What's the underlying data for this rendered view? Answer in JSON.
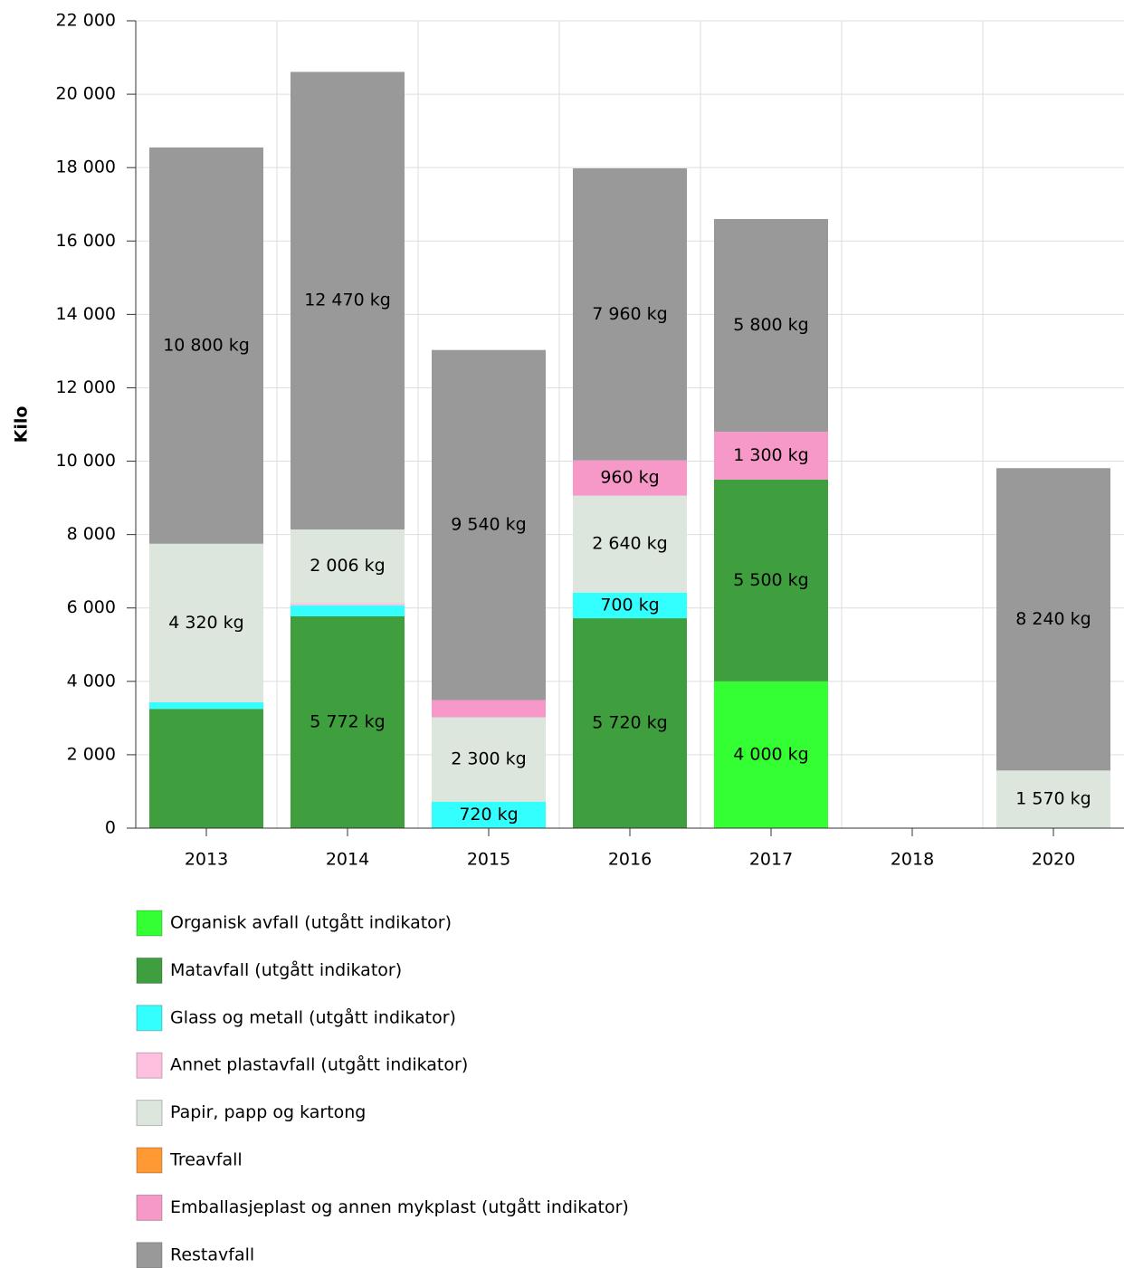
{
  "chart_data": {
    "type": "stacked_bar",
    "y_label": "Kilo",
    "categories": [
      "2013",
      "2014",
      "2015",
      "2016",
      "2017",
      "2018",
      "2020"
    ],
    "series": [
      {
        "name": "Organisk avfall (utgått indikator)",
        "color": "#33ff33",
        "values": [
          null,
          null,
          null,
          null,
          4000,
          null,
          null
        ],
        "value_labels": [
          null,
          null,
          null,
          null,
          "4 000 kg",
          null,
          null
        ]
      },
      {
        "name": "Matavfall (utgått indikator)",
        "color": "#3f9f3f",
        "values": [
          3250,
          5772,
          null,
          5720,
          5500,
          null,
          null
        ],
        "value_labels": [
          null,
          "5 772 kg",
          null,
          "5 720 kg",
          "5 500 kg",
          null,
          null
        ]
      },
      {
        "name": "Glass og metall (utgått indikator)",
        "color": "#33ffff",
        "values": [
          180,
          300,
          720,
          700,
          null,
          null,
          null
        ],
        "value_labels": [
          null,
          null,
          "720 kg",
          "700 kg",
          null,
          null,
          null
        ]
      },
      {
        "name": "Annet plastavfall (utgått indikator)",
        "color": "#ffc0e0",
        "values": [
          null,
          60,
          null,
          null,
          null,
          null,
          null
        ],
        "value_labels": [
          null,
          null,
          null,
          null,
          null,
          null,
          null
        ]
      },
      {
        "name": "Papir, papp og kartong",
        "color": "#dce6dc",
        "values": [
          4320,
          2006,
          2300,
          2640,
          null,
          null,
          1570
        ],
        "value_labels": [
          "4 320 kg",
          "2 006 kg",
          "2 300 kg",
          "2 640 kg",
          null,
          null,
          "1 570 kg"
        ]
      },
      {
        "name": "Treavfall",
        "color": "#ff9933",
        "values": [
          null,
          null,
          null,
          null,
          null,
          null,
          null
        ],
        "value_labels": [
          null,
          null,
          null,
          null,
          null,
          null,
          null
        ]
      },
      {
        "name": "Emballasjeplast og annen mykplast (utgått indikator)",
        "color": "#f799c8",
        "values": [
          null,
          null,
          470,
          960,
          1300,
          null,
          null
        ],
        "value_labels": [
          null,
          null,
          null,
          "960 kg",
          "1 300 kg",
          null,
          null
        ]
      },
      {
        "name": "Restavfall",
        "color": "#999999",
        "values": [
          10800,
          12470,
          9540,
          7960,
          5800,
          null,
          8240
        ],
        "value_labels": [
          "10 800 kg",
          "12 470 kg",
          "9 540 kg",
          "7 960 kg",
          "5 800 kg",
          null,
          "8 240 kg"
        ]
      }
    ],
    "ylim": [
      0,
      22000
    ],
    "yticks": [
      0,
      {
        "value": 2000,
        "label": "2 000"
      },
      {
        "value": 4000,
        "label": "4 000"
      },
      {
        "value": 6000,
        "label": "6 000"
      },
      {
        "value": 8000,
        "label": "8 000"
      },
      {
        "value": 10000,
        "label": "10 000"
      },
      {
        "value": 12000,
        "label": "12 000"
      },
      {
        "value": 14000,
        "label": "14 000"
      },
      {
        "value": 16000,
        "label": "16 000"
      },
      {
        "value": 18000,
        "label": "18 000"
      },
      {
        "value": 20000,
        "label": "20 000"
      },
      {
        "value": 22000,
        "label": "22 000"
      }
    ],
    "grid": true,
    "legend": "bottom"
  }
}
